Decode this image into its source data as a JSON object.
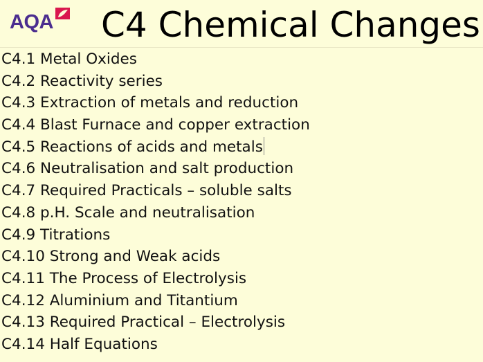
{
  "logo": {
    "text": "AQA",
    "brand_colors": {
      "text": "#4b2d8f",
      "mark": "#d9184e"
    }
  },
  "header": {
    "title": "C4 Chemical Changes"
  },
  "background": "#fdfdd9",
  "topics": [
    "C4.1 Metal Oxides",
    "C4.2 Reactivity series",
    "C4.3 Extraction of metals and reduction",
    "C4.4 Blast Furnace and copper extraction",
    "C4.5 Reactions of acids and metals",
    "C4.6 Neutralisation and salt production",
    "C4.7 Required Practicals – soluble salts",
    "C4.8 p.H. Scale and neutralisation",
    "C4.9 Titrations",
    "C4.10 Strong and Weak acids",
    "C4.11 The Process of Electrolysis",
    "C4.12 Aluminium and Titantium",
    "C4.13 Required Practical – Electrolysis",
    "C4.14 Half Equations"
  ]
}
